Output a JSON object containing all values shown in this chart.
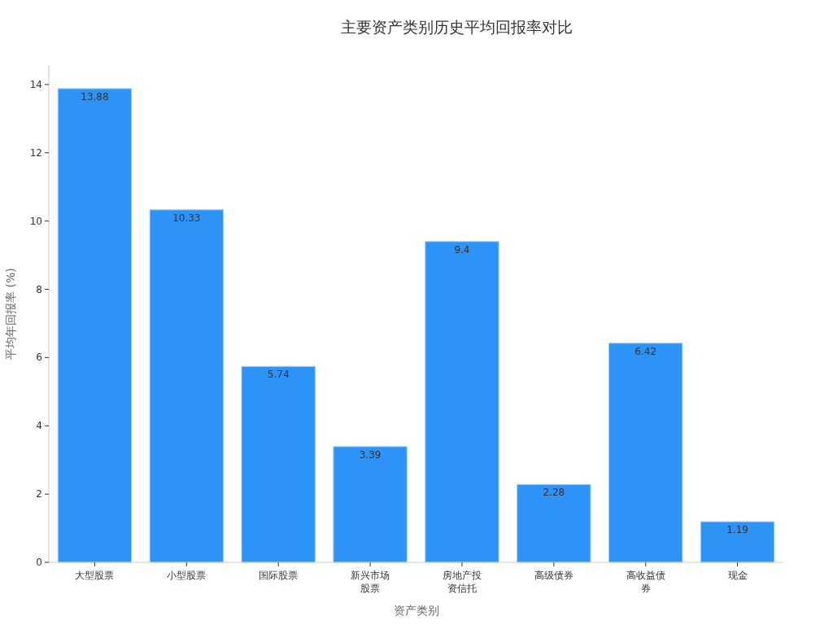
{
  "chart_data": {
    "type": "bar",
    "title": "主要资产类别历史平均回报率对比",
    "xlabel": "资产类别",
    "ylabel": "平均年回报率 (%)",
    "categories": [
      "大型股票",
      "小型股票",
      "国际股票",
      "新兴市场股票",
      "房地产投资信托",
      "高级债券",
      "高收益债券",
      "现金"
    ],
    "values": [
      13.88,
      10.33,
      5.74,
      3.39,
      9.4,
      2.28,
      6.42,
      1.19
    ],
    "color": "#2e93f7",
    "ylim": [
      0,
      14.57
    ],
    "yticks": [
      0,
      2,
      4,
      6,
      8,
      10,
      12,
      14
    ],
    "data_labels": true
  }
}
